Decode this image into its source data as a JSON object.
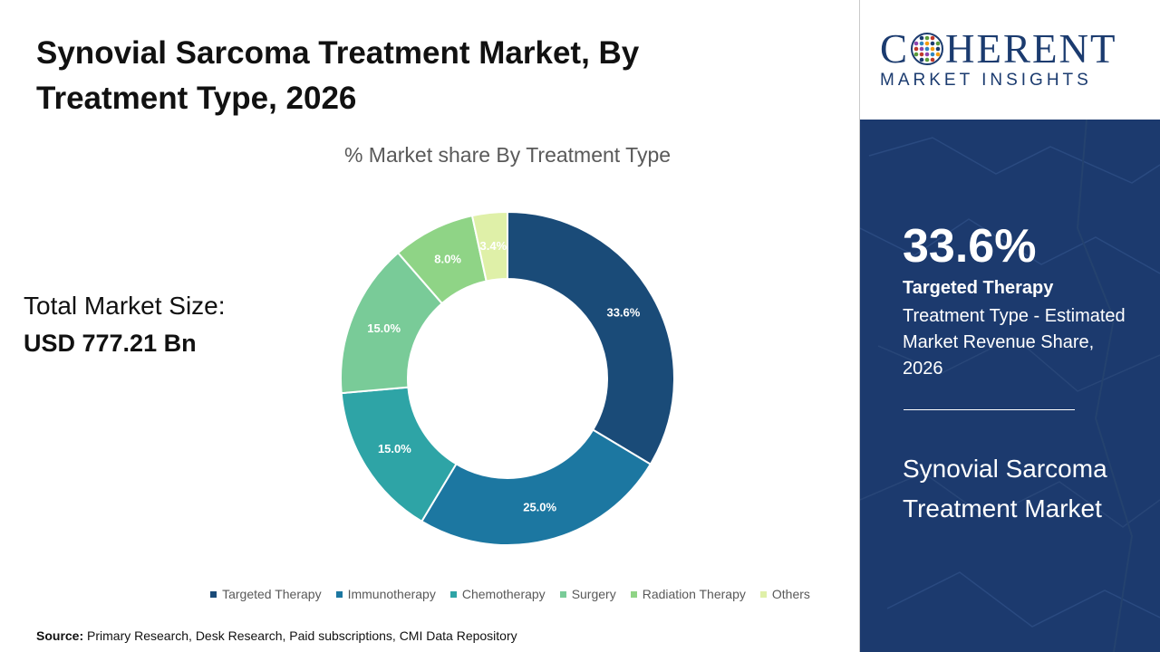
{
  "header": {
    "title": "Synovial Sarcoma Treatment Market, By Treatment Type, 2026"
  },
  "summary": {
    "total_label": "Total Market Size:",
    "total_value": "USD 777.21 Bn"
  },
  "chart_data": {
    "type": "pie",
    "donut": true,
    "title": "% Market share By Treatment Type",
    "categories": [
      "Targeted Therapy",
      "Immunotherapy",
      "Chemotherapy",
      "Surgery",
      "Radiation Therapy",
      "Others"
    ],
    "values": [
      33.6,
      25.0,
      15.0,
      15.0,
      8.0,
      3.4
    ],
    "data_labels": [
      "33.6%",
      "25.0%",
      "15.0%",
      "15.0%",
      "8.0%",
      "3.4%"
    ],
    "colors": [
      "#1a4b78",
      "#1c77a1",
      "#2ea4a6",
      "#79cb98",
      "#8fd486",
      "#dff0a8"
    ],
    "legend_position": "bottom"
  },
  "source": {
    "label": "Source:",
    "text": "Primary Research, Desk Research, Paid subscriptions, CMI Data Repository"
  },
  "brand": {
    "logo_left": "C",
    "logo_right": "HERENT",
    "logo_sub": "MARKET INSIGHTS",
    "color": "#1b3b6f"
  },
  "panel": {
    "highlight_value": "33.6%",
    "highlight_segment": "Targeted Therapy",
    "highlight_desc": "Treatment Type - Estimated Market Revenue Share, 2026",
    "market_name": "Synovial Sarcoma Treatment Market",
    "background": "#1c3a6e"
  }
}
